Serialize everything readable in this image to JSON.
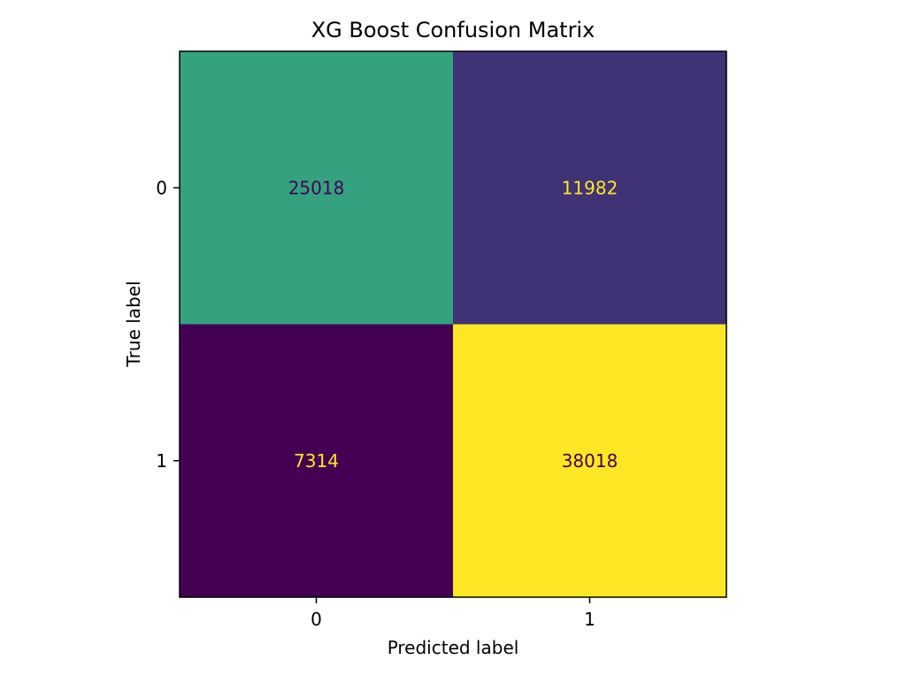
{
  "chart_data": {
    "type": "heatmap",
    "title": "XG Boost Confusion Matrix",
    "xlabel": "Predicted label",
    "ylabel": "True label",
    "x_categories": [
      "0",
      "1"
    ],
    "y_categories": [
      "0",
      "1"
    ],
    "values": [
      [
        25018,
        11982
      ],
      [
        7314,
        38018
      ]
    ],
    "colormap": "viridis",
    "colormap_range": [
      7314,
      38018
    ],
    "cell_text_colors": {
      "dark": "#440154",
      "light": "#fde725"
    },
    "grid": false,
    "colorbar": false
  }
}
